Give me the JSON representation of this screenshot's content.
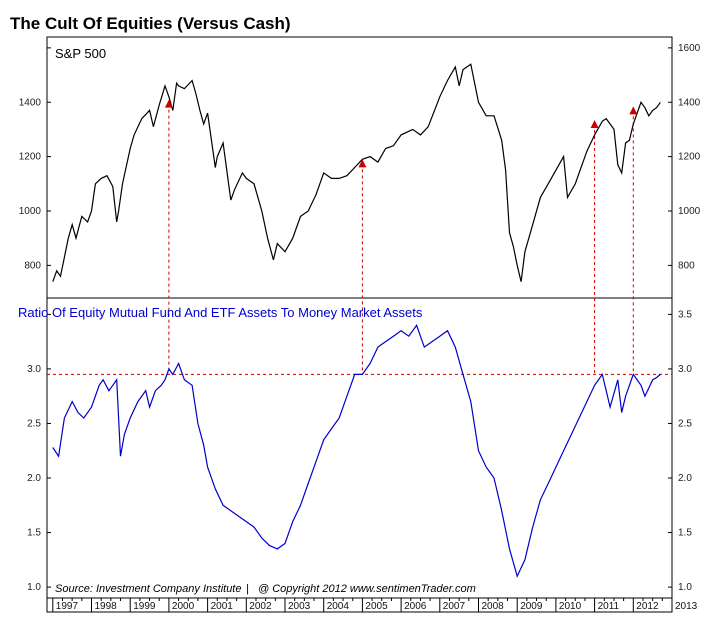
{
  "title": "The Cult Of Equities (Versus Cash)",
  "footer": {
    "source": "Source:  Investment Company Institute",
    "separator": "|",
    "copyright": "@ Copyright 2012  www.sentimenTrader.com"
  },
  "colors": {
    "sp500_line": "#000000",
    "ratio_line": "#0000cc",
    "marker": "#cc0000",
    "reference": "#cc0000"
  },
  "chart_data": [
    {
      "type": "line",
      "title": "S&P 500",
      "ylim": [
        680,
        1640
      ],
      "yticks": [
        800,
        1000,
        1200,
        1400,
        1600
      ],
      "left_tick_labels": [
        "800",
        "1000",
        "1200",
        "1400"
      ],
      "right_tick_labels": [
        "800",
        "1000",
        "1200",
        "1400",
        "1600"
      ],
      "series": [
        {
          "name": "S&P 500",
          "x": [
            1997.0,
            1997.1,
            1997.2,
            1997.3,
            1997.4,
            1997.5,
            1997.6,
            1997.75,
            1997.9,
            1998.0,
            1998.1,
            1998.25,
            1998.4,
            1998.55,
            1998.65,
            1998.7,
            1998.8,
            1999.0,
            1999.1,
            1999.3,
            1999.5,
            1999.6,
            1999.75,
            1999.9,
            2000.0,
            2000.1,
            2000.2,
            2000.25,
            2000.4,
            2000.6,
            2000.7,
            2000.8,
            2000.9,
            2001.0,
            2001.2,
            2001.25,
            2001.4,
            2001.6,
            2001.7,
            2001.9,
            2002.0,
            2002.2,
            2002.4,
            2002.55,
            2002.7,
            2002.8,
            2003.0,
            2003.2,
            2003.4,
            2003.6,
            2003.8,
            2004.0,
            2004.2,
            2004.4,
            2004.6,
            2004.8,
            2005.0,
            2005.2,
            2005.4,
            2005.6,
            2005.8,
            2006.0,
            2006.3,
            2006.5,
            2006.7,
            2007.0,
            2007.2,
            2007.4,
            2007.5,
            2007.6,
            2007.8,
            2008.0,
            2008.2,
            2008.4,
            2008.6,
            2008.7,
            2008.8,
            2008.9,
            2009.0,
            2009.1,
            2009.2,
            2009.4,
            2009.6,
            2009.8,
            2010.0,
            2010.2,
            2010.3,
            2010.5,
            2010.6,
            2010.8,
            2011.0,
            2011.2,
            2011.3,
            2011.5,
            2011.6,
            2011.7,
            2011.8,
            2011.9,
            2012.0,
            2012.2,
            2012.3,
            2012.4,
            2012.5,
            2012.6,
            2012.7
          ],
          "values": [
            740,
            780,
            760,
            830,
            900,
            950,
            900,
            980,
            960,
            1000,
            1100,
            1120,
            1130,
            1090,
            960,
            1000,
            1100,
            1230,
            1280,
            1340,
            1370,
            1310,
            1390,
            1460,
            1420,
            1370,
            1470,
            1460,
            1450,
            1480,
            1430,
            1370,
            1320,
            1360,
            1160,
            1200,
            1250,
            1040,
            1080,
            1140,
            1120,
            1100,
            1000,
            900,
            820,
            880,
            850,
            900,
            980,
            1000,
            1060,
            1140,
            1120,
            1120,
            1130,
            1160,
            1190,
            1200,
            1180,
            1230,
            1240,
            1280,
            1300,
            1280,
            1310,
            1420,
            1480,
            1530,
            1460,
            1520,
            1540,
            1400,
            1350,
            1350,
            1260,
            1150,
            920,
            870,
            800,
            740,
            850,
            950,
            1050,
            1100,
            1150,
            1200,
            1050,
            1100,
            1140,
            1220,
            1280,
            1330,
            1340,
            1300,
            1170,
            1140,
            1250,
            1260,
            1320,
            1400,
            1380,
            1350,
            1370,
            1380,
            1400
          ]
        }
      ],
      "markers": [
        {
          "x": 2000.0,
          "y": 1395
        },
        {
          "x": 2005.0,
          "y": 1175
        },
        {
          "x": 2011.0,
          "y": 1320
        },
        {
          "x": 2012.0,
          "y": 1370
        }
      ]
    },
    {
      "type": "line",
      "title": "Ratio Of Equity Mutual Fund And ETF Assets To Money Market Assets",
      "ylim": [
        0.9,
        3.65
      ],
      "yticks": [
        1.0,
        1.5,
        2.0,
        2.5,
        3.0,
        3.5
      ],
      "left_tick_labels": [
        "1.0",
        "1.5",
        "2.0",
        "2.5",
        "3.0"
      ],
      "right_tick_labels": [
        "1.0",
        "1.5",
        "2.0",
        "2.5",
        "3.0",
        "3.5"
      ],
      "reference_line": 2.95,
      "series": [
        {
          "name": "Ratio",
          "x": [
            1997.0,
            1997.15,
            1997.3,
            1997.5,
            1997.65,
            1997.8,
            1998.0,
            1998.2,
            1998.3,
            1998.45,
            1998.55,
            1998.65,
            1998.75,
            1998.85,
            1999.0,
            1999.2,
            1999.4,
            1999.5,
            1999.65,
            1999.8,
            1999.9,
            2000.0,
            2000.1,
            2000.25,
            2000.4,
            2000.6,
            2000.75,
            2000.9,
            2001.0,
            2001.2,
            2001.4,
            2001.6,
            2001.8,
            2002.0,
            2002.2,
            2002.4,
            2002.6,
            2002.8,
            2003.0,
            2003.2,
            2003.4,
            2003.6,
            2003.8,
            2004.0,
            2004.2,
            2004.4,
            2004.6,
            2004.8,
            2005.0,
            2005.2,
            2005.4,
            2005.6,
            2005.8,
            2006.0,
            2006.2,
            2006.4,
            2006.6,
            2006.8,
            2007.0,
            2007.2,
            2007.4,
            2007.6,
            2007.8,
            2008.0,
            2008.2,
            2008.4,
            2008.6,
            2008.8,
            2009.0,
            2009.2,
            2009.4,
            2009.6,
            2009.8,
            2010.0,
            2010.2,
            2010.4,
            2010.6,
            2010.8,
            2011.0,
            2011.2,
            2011.4,
            2011.6,
            2011.7,
            2011.8,
            2012.0,
            2012.2,
            2012.3,
            2012.5,
            2012.6,
            2012.7
          ],
          "values": [
            2.28,
            2.2,
            2.55,
            2.7,
            2.6,
            2.55,
            2.65,
            2.85,
            2.9,
            2.8,
            2.85,
            2.9,
            2.2,
            2.4,
            2.55,
            2.7,
            2.8,
            2.65,
            2.8,
            2.85,
            2.9,
            3.0,
            2.95,
            3.05,
            2.9,
            2.85,
            2.5,
            2.3,
            2.1,
            1.9,
            1.75,
            1.7,
            1.65,
            1.6,
            1.55,
            1.45,
            1.38,
            1.35,
            1.4,
            1.6,
            1.75,
            1.95,
            2.15,
            2.35,
            2.45,
            2.55,
            2.75,
            2.95,
            2.95,
            3.05,
            3.2,
            3.25,
            3.3,
            3.35,
            3.3,
            3.4,
            3.2,
            3.25,
            3.3,
            3.35,
            3.2,
            2.95,
            2.7,
            2.25,
            2.1,
            2.0,
            1.7,
            1.35,
            1.1,
            1.25,
            1.55,
            1.8,
            1.95,
            2.1,
            2.25,
            2.4,
            2.55,
            2.7,
            2.85,
            2.95,
            2.65,
            2.9,
            2.6,
            2.75,
            2.95,
            2.85,
            2.75,
            2.9,
            2.92,
            2.95
          ]
        }
      ]
    }
  ],
  "x_axis": {
    "range": [
      1996.85,
      2013.0
    ],
    "year_labels": [
      "1997",
      "1998",
      "1999",
      "2000",
      "2001",
      "2002",
      "2003",
      "2004",
      "2005",
      "2006",
      "2007",
      "2008",
      "2009",
      "2010",
      "2011",
      "2012",
      "2013"
    ]
  }
}
